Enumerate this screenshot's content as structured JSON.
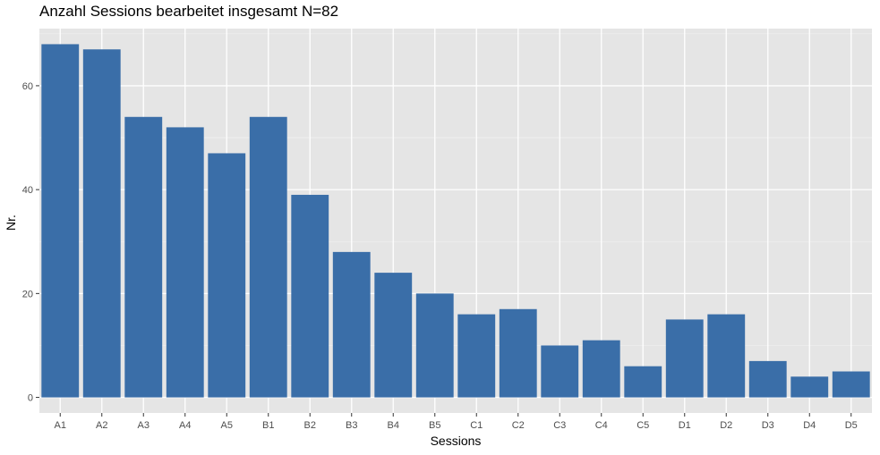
{
  "chart_data": {
    "type": "bar",
    "title": "Anzahl Sessions bearbeitet insgesamt N=82",
    "xlabel": "Sessions",
    "ylabel": "Nr.",
    "categories": [
      "A1",
      "A2",
      "A3",
      "A4",
      "A5",
      "B1",
      "B2",
      "B3",
      "B4",
      "B5",
      "C1",
      "C2",
      "C3",
      "C4",
      "C5",
      "D1",
      "D2",
      "D3",
      "D4",
      "D5"
    ],
    "values": [
      68,
      67,
      54,
      52,
      47,
      54,
      39,
      28,
      24,
      20,
      16,
      17,
      10,
      11,
      6,
      15,
      16,
      7,
      4,
      5
    ],
    "ylim": [
      -3,
      71
    ],
    "yticks": [
      0,
      20,
      40,
      60
    ],
    "grid": true,
    "colors": {
      "bar": "#3a6ea8",
      "panel": "#e5e5e5",
      "grid_major": "#ffffff",
      "grid_minor": "#f0f0f0",
      "tick_text": "#4d4d4d"
    }
  }
}
